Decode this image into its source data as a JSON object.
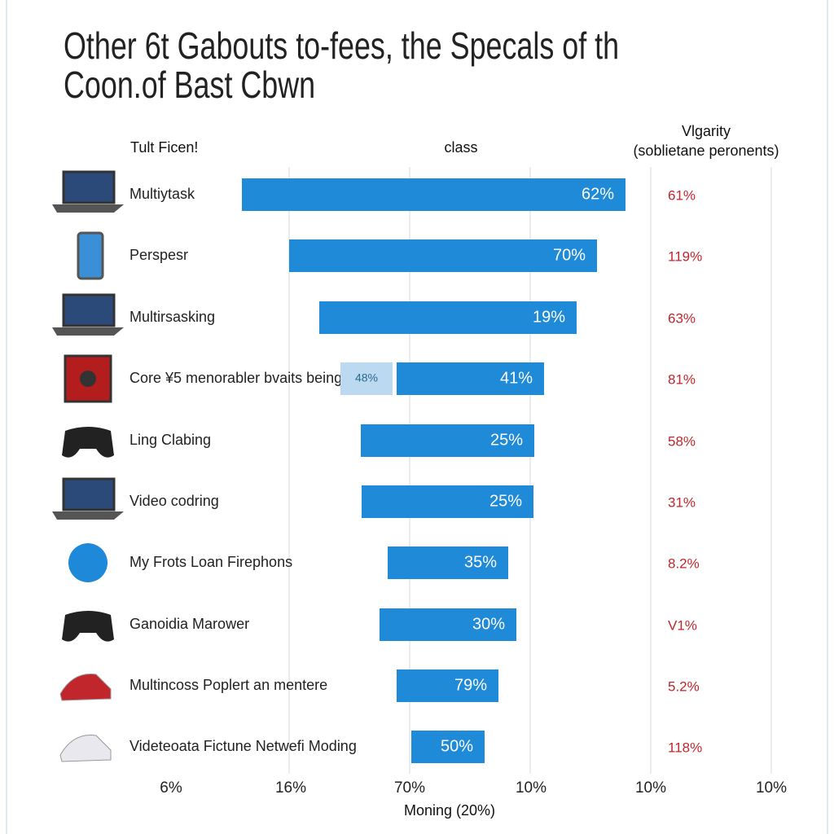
{
  "header": {
    "title_line1": "Other 6t Gabouts to-fees, the Specals of th",
    "title_line2": "Coon.of Bast Cbwn",
    "col_left": "Tult Ficen!",
    "col_mid": "class",
    "col_right_1": "Vlgarity",
    "col_right_2": "(soblietane peronents)"
  },
  "rows": [
    {
      "label": "Multiytask",
      "bar_label": "62%",
      "right_label": "61%"
    },
    {
      "label": "Perspesr",
      "bar_label": "70%",
      "right_label": "119%"
    },
    {
      "label": "Multirsasking",
      "bar_label": "19%",
      "right_label": "63%"
    },
    {
      "label": "Core ¥5 menorabler bvaits being",
      "extra_label": "48%",
      "bar_label": "41%",
      "right_label": "81%"
    },
    {
      "label": "Ling Clabing",
      "bar_label": "25%",
      "right_label": "58%"
    },
    {
      "label": "Video codring",
      "bar_label": "25%",
      "right_label": "31%"
    },
    {
      "label": "My Frots Loan Firephons",
      "bar_label": "35%",
      "right_label": "8.2%"
    },
    {
      "label": "Ganoidia Marower",
      "bar_label": "30%",
      "right_label": "V1%"
    },
    {
      "label": "Multincoss Poplert an mentere",
      "bar_label": "79%",
      "right_label": "5.2%"
    },
    {
      "label": "Videteoata Fictune Netwefi Moding",
      "bar_label": "50%",
      "right_label": "118%"
    }
  ],
  "axis": {
    "ticks": [
      "6%",
      "16%",
      "70%",
      "10%",
      "10%",
      "10%"
    ],
    "title": "Moning (20%)"
  }
}
